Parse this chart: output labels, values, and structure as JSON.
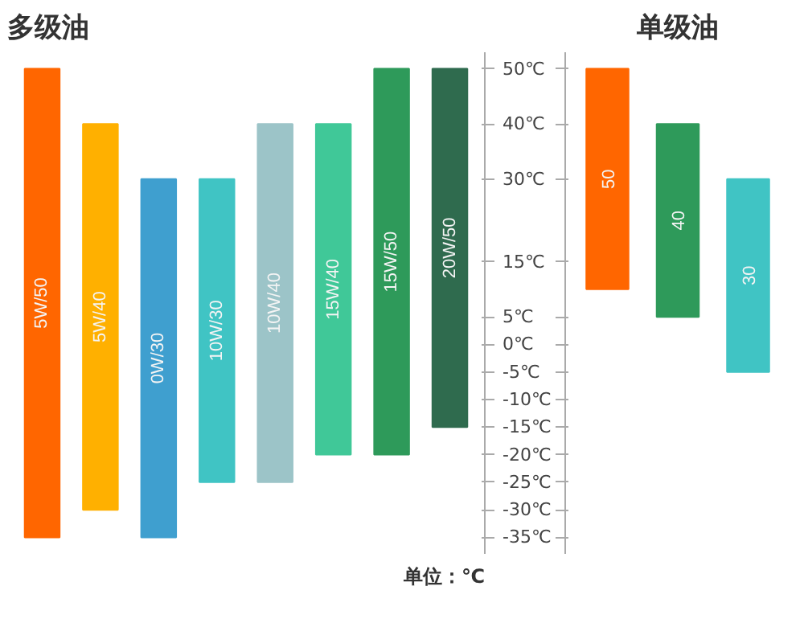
{
  "chart_data": [
    {
      "type": "bar",
      "title": "多级油",
      "categories": [
        "5W/50",
        "5W/40",
        "0W/30",
        "10W/30",
        "10W/40",
        "15W/40",
        "15W/50",
        "20W/50"
      ],
      "base": [
        -35,
        -30,
        -35,
        -25,
        -25,
        -20,
        -20,
        -15
      ],
      "values": [
        85,
        70,
        65,
        55,
        65,
        60,
        70,
        65
      ],
      "colors": [
        "#ff6600",
        "#ffb000",
        "#3f9fcf",
        "#40c4c4",
        "#9cc4c8",
        "#40c898",
        "#2e9a5a",
        "#2f6b4e"
      ],
      "ylim": [
        -38,
        53
      ],
      "yticks": [
        {
          "value": 50,
          "label": "50℃"
        },
        {
          "value": 40,
          "label": "40℃"
        },
        {
          "value": 30,
          "label": "30℃"
        },
        {
          "value": 15,
          "label": "15℃"
        },
        {
          "value": 5,
          "label": "5℃"
        },
        {
          "value": 0,
          "label": "0℃"
        },
        {
          "value": -5,
          "label": "-5℃"
        },
        {
          "value": -10,
          "label": "-10℃"
        },
        {
          "value": -15,
          "label": "-15℃"
        },
        {
          "value": -20,
          "label": "-20℃"
        },
        {
          "value": -25,
          "label": "-25℃"
        },
        {
          "value": -30,
          "label": "-30℃"
        },
        {
          "value": -35,
          "label": "-35℃"
        }
      ],
      "tick_labels": "y",
      "annotations": [
        "单位：℃"
      ]
    },
    {
      "type": "bar",
      "title": "单级油",
      "categories": [
        "50",
        "40",
        "30"
      ],
      "base": [
        10,
        5,
        -5
      ],
      "values": [
        40,
        35,
        35
      ],
      "colors": [
        "#ff6600",
        "#2e9a5a",
        "#40c4c4"
      ],
      "ylim": [
        -38,
        53
      ],
      "yticks": [
        {
          "value": 50,
          "label": null
        },
        {
          "value": 40,
          "label": null
        },
        {
          "value": 30,
          "label": null
        },
        {
          "value": 15,
          "label": null
        },
        {
          "value": 5,
          "label": null
        },
        {
          "value": 0,
          "label": null
        },
        {
          "value": -5,
          "label": null
        },
        {
          "value": -10,
          "label": null
        },
        {
          "value": -15,
          "label": null
        },
        {
          "value": -20,
          "label": null
        },
        {
          "value": -25,
          "label": null
        },
        {
          "value": -30,
          "label": null
        },
        {
          "value": -35,
          "label": null
        }
      ],
      "tick_labels": false
    }
  ]
}
